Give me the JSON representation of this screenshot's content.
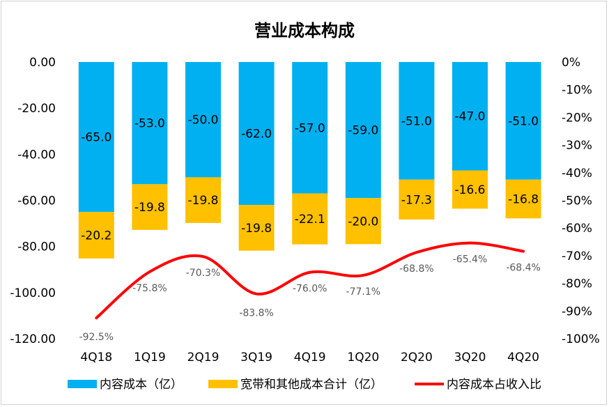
{
  "chart_data": {
    "type": "bar",
    "title": "营业成本构成",
    "categories": [
      "4Q18",
      "1Q19",
      "2Q19",
      "3Q19",
      "4Q19",
      "1Q20",
      "2Q20",
      "3Q20",
      "4Q20"
    ],
    "series": [
      {
        "name": "内容成本（亿）",
        "kind": "stacked-bar",
        "color": "#00B0F0",
        "values": [
          -65.0,
          -53.0,
          -50.0,
          -62.0,
          -57.0,
          -59.0,
          -51.0,
          -47.0,
          -51.0
        ],
        "labels": [
          "-65.0",
          "-53.0",
          "-50.0",
          "-62.0",
          "-57.0",
          "-59.0",
          "-51.0",
          "-47.0",
          "-51.0"
        ]
      },
      {
        "name": "宽带和其他成本合计（亿）",
        "kind": "stacked-bar",
        "color": "#FFC000",
        "values": [
          -20.2,
          -19.8,
          -19.8,
          -19.8,
          -22.1,
          -20.0,
          -17.3,
          -16.6,
          -16.8
        ],
        "labels": [
          "-20.2",
          "-19.8",
          "-19.8",
          "-19.8",
          "-22.1",
          "-20.0",
          "-17.3",
          "-16.6",
          "-16.8"
        ]
      },
      {
        "name": "内容成本占收入比",
        "kind": "line",
        "axis": "right",
        "color": "#FF0000",
        "values": [
          -92.5,
          -75.8,
          -70.3,
          -83.8,
          -76.0,
          -77.1,
          -68.8,
          -65.4,
          -68.4
        ],
        "labels": [
          "-92.5%",
          "-75.8%",
          "-70.3%",
          "-83.8%",
          "-76.0%",
          "-77.1%",
          "-68.8%",
          "-65.4%",
          "-68.4%"
        ]
      }
    ],
    "y_left": {
      "ylim": [
        -120,
        0
      ],
      "ticks": [
        "0.00",
        "-20.00",
        "-40.00",
        "-60.00",
        "-80.00",
        "-100.00",
        "-120.00"
      ]
    },
    "y_right": {
      "ylim": [
        -100,
        0
      ],
      "ticks": [
        "0%",
        "-10%",
        "-20%",
        "-30%",
        "-40%",
        "-50%",
        "-60%",
        "-70%",
        "-80%",
        "-90%",
        "-100%"
      ]
    },
    "grid": false,
    "legend": "bottom",
    "xlabel": "",
    "ylabel": ""
  }
}
